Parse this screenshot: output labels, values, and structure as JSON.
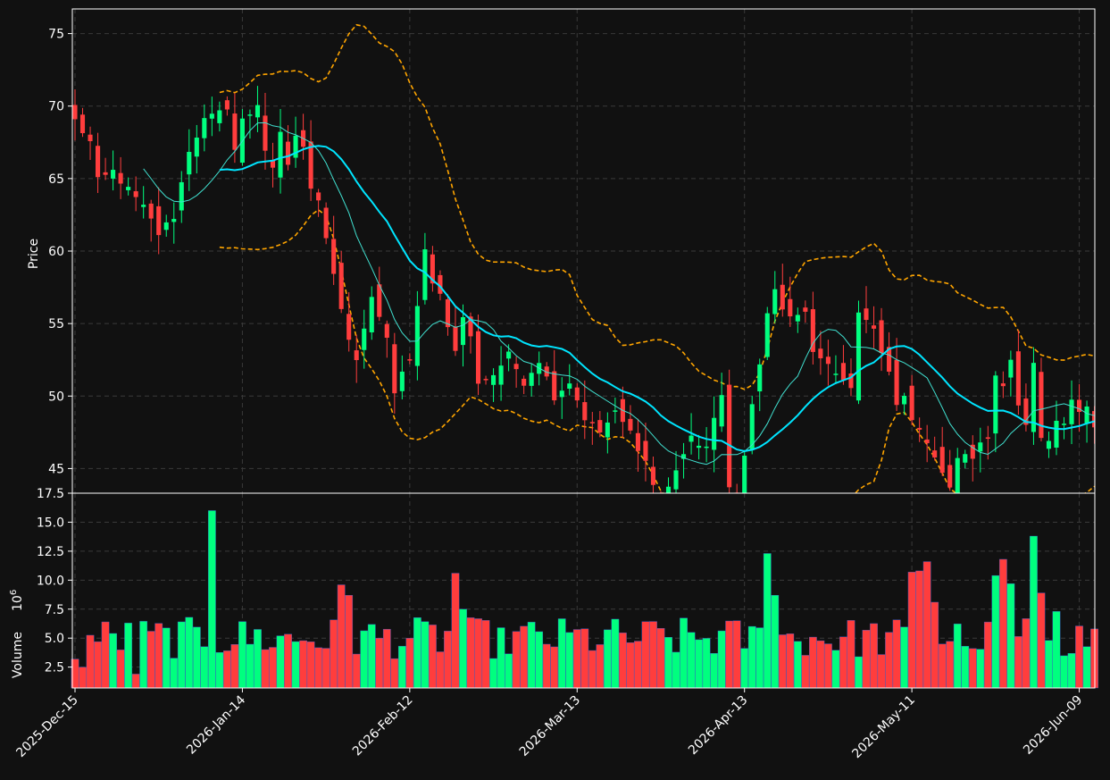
{
  "chart_data": {
    "type": "candlestick",
    "y_label": "Price",
    "volume_label": "Volume",
    "volume_exponent": "10",
    "volume_exponent_power": "6",
    "date_ticks": [
      {
        "index": 0,
        "label": "2025-Dec-15"
      },
      {
        "index": 22,
        "label": "2026-Jan-14"
      },
      {
        "index": 44,
        "label": "2026-Feb-12"
      },
      {
        "index": 66,
        "label": "2026-Mar-13"
      },
      {
        "index": 88,
        "label": "2026-Apr-13"
      },
      {
        "index": 110,
        "label": "2026-May-11"
      },
      {
        "index": 132,
        "label": "2026-Jun-09"
      }
    ],
    "price_ticks": [
      "45",
      "50",
      "55",
      "60",
      "65",
      "70",
      "75"
    ],
    "price_tick_values": [
      45,
      50,
      55,
      60,
      65,
      70,
      75
    ],
    "volume_ticks": [
      "2.5",
      "5.0",
      "7.5",
      "10.0",
      "12.5",
      "15.0",
      "17.5"
    ],
    "volume_tick_values": [
      2.5,
      5.0,
      7.5,
      10.0,
      12.5,
      15.0,
      17.5
    ],
    "price_range": [
      43.3,
      76.7
    ],
    "volume_range": [
      0.7,
      17.5
    ],
    "colors": {
      "up": "#00ff7f",
      "down": "#ff3d3d",
      "sma_short": "#40e0d0",
      "sma_long": "#00e5ff",
      "bands": "#ffa500",
      "grid": "#3a3a3a",
      "background": "#111111"
    },
    "keypoints_close": [
      [
        0,
        69.0
      ],
      [
        2,
        67.5
      ],
      [
        3,
        64.8
      ],
      [
        5,
        65.5
      ],
      [
        7,
        64.2
      ],
      [
        9,
        63.0
      ],
      [
        11,
        61.2
      ],
      [
        13,
        62.4
      ],
      [
        15,
        67.0
      ],
      [
        17,
        69.0
      ],
      [
        19,
        69.5
      ],
      [
        20,
        70.0
      ],
      [
        21,
        67.0
      ],
      [
        22,
        69.0
      ],
      [
        23,
        69.5
      ],
      [
        24,
        70.2
      ],
      [
        25,
        67.0
      ],
      [
        26,
        65.5
      ],
      [
        27,
        68.0
      ],
      [
        28,
        66.0
      ],
      [
        29,
        68.0
      ],
      [
        30,
        67.0
      ],
      [
        31,
        64.5
      ],
      [
        32,
        63.7
      ],
      [
        33,
        61.0
      ],
      [
        34,
        58.5
      ],
      [
        35,
        56.0
      ],
      [
        36,
        53.6
      ],
      [
        37,
        52.5
      ],
      [
        38,
        54.5
      ],
      [
        39,
        57.0
      ],
      [
        40,
        55.5
      ],
      [
        41,
        53.8
      ],
      [
        42,
        50.0
      ],
      [
        43,
        51.8
      ],
      [
        44,
        52.5
      ],
      [
        45,
        56.0
      ],
      [
        46,
        60.0
      ],
      [
        47,
        58.0
      ],
      [
        48,
        57.0
      ],
      [
        49,
        55.0
      ],
      [
        50,
        53.0
      ],
      [
        51,
        55.5
      ],
      [
        52,
        54.0
      ],
      [
        53,
        51.0
      ],
      [
        55,
        51.5
      ],
      [
        57,
        52.8
      ],
      [
        59,
        51.0
      ],
      [
        61,
        52.5
      ],
      [
        63,
        50.0
      ],
      [
        65,
        51.0
      ],
      [
        67,
        48.5
      ],
      [
        69,
        47.5
      ],
      [
        71,
        48.8
      ],
      [
        73,
        47.5
      ],
      [
        75,
        45.5
      ],
      [
        77,
        42.3
      ],
      [
        79,
        45.0
      ],
      [
        81,
        47.0
      ],
      [
        83,
        46.5
      ],
      [
        85,
        50.0
      ],
      [
        86,
        44.0
      ],
      [
        87,
        42.3
      ],
      [
        88,
        45.8
      ],
      [
        89,
        49.5
      ],
      [
        90,
        52.0
      ],
      [
        91,
        55.6
      ],
      [
        92,
        57.5
      ],
      [
        93,
        55.8
      ],
      [
        94,
        55.2
      ],
      [
        96,
        56.0
      ],
      [
        97,
        53.0
      ],
      [
        99,
        52.0
      ],
      [
        101,
        51.0
      ],
      [
        102,
        50.8
      ],
      [
        103,
        55.5
      ],
      [
        104,
        55.5
      ],
      [
        105,
        54.8
      ],
      [
        106,
        53.0
      ],
      [
        107,
        51.5
      ],
      [
        108,
        49.5
      ],
      [
        109,
        49.8
      ],
      [
        110,
        48.5
      ],
      [
        111,
        47.5
      ],
      [
        112,
        46.8
      ],
      [
        113,
        45.8
      ],
      [
        114,
        45.0
      ],
      [
        115,
        43.8
      ],
      [
        116,
        45.6
      ],
      [
        117,
        45.8
      ],
      [
        118,
        45.5
      ],
      [
        119,
        46.5
      ],
      [
        120,
        47.0
      ],
      [
        121,
        51.2
      ],
      [
        122,
        50.8
      ],
      [
        123,
        52.8
      ],
      [
        124,
        49.5
      ],
      [
        125,
        48.0
      ],
      [
        126,
        52.2
      ],
      [
        127,
        47.0
      ],
      [
        128,
        46.8
      ],
      [
        129,
        48.3
      ],
      [
        130,
        48.0
      ],
      [
        131,
        49.5
      ],
      [
        132,
        48.8
      ],
      [
        133,
        49.5
      ],
      [
        134,
        47.8
      ]
    ]
  }
}
